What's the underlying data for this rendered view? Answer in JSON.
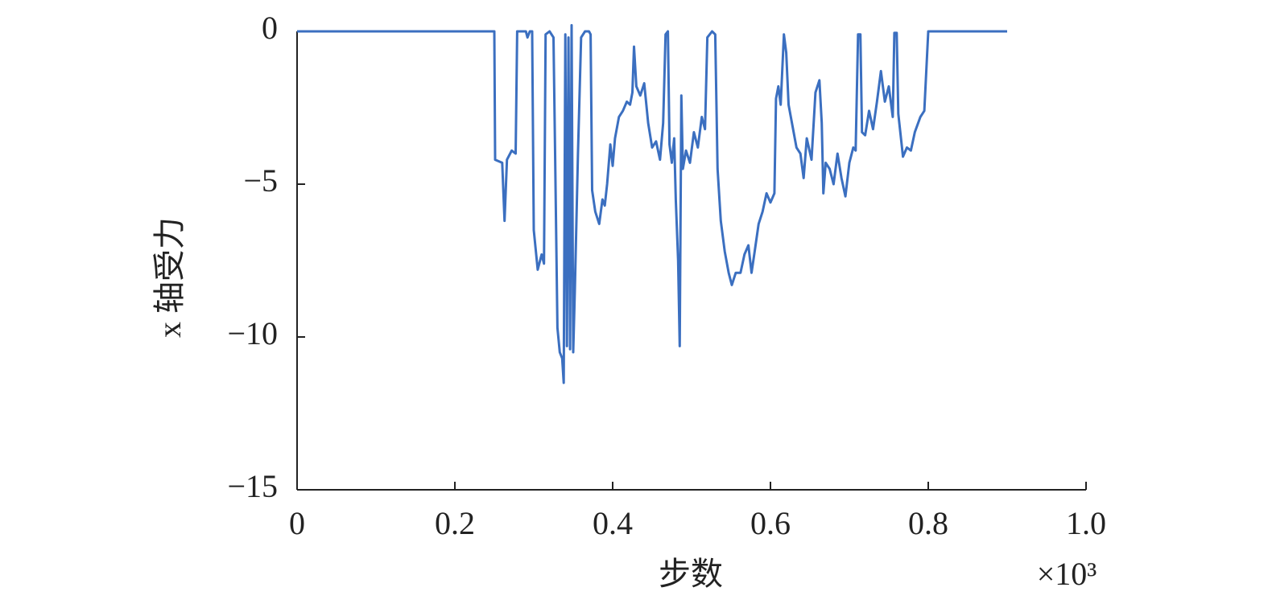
{
  "chart_data": {
    "type": "line",
    "x_label": "步数",
    "y_label": "x 轴受力",
    "x_multiplier": "×10³",
    "color": "#3b6fc0",
    "xlim": [
      0,
      1
    ],
    "xticks": [
      0,
      0.2,
      0.4,
      0.6,
      0.8,
      {
        "value": 1,
        "label": "1.0"
      }
    ],
    "ylim": [
      -15,
      0
    ],
    "yticks": [
      {
        "value": -15,
        "label": "−15"
      },
      {
        "value": -10,
        "label": "−10"
      },
      {
        "value": -5,
        "label": "−5"
      },
      0
    ],
    "grid": false,
    "x": [
      0,
      0.25,
      0.251,
      0.26,
      0.263,
      0.266,
      0.272,
      0.277,
      0.279,
      0.29,
      0.292,
      0.295,
      0.298,
      0.3,
      0.305,
      0.31,
      0.313,
      0.315,
      0.32,
      0.325,
      0.327,
      0.33,
      0.333,
      0.336,
      0.338,
      0.34,
      0.342,
      0.344,
      0.346,
      0.348,
      0.35,
      0.352,
      0.356,
      0.36,
      0.365,
      0.37,
      0.372,
      0.374,
      0.378,
      0.383,
      0.387,
      0.39,
      0.393,
      0.397,
      0.4,
      0.403,
      0.408,
      0.413,
      0.418,
      0.422,
      0.425,
      0.427,
      0.43,
      0.435,
      0.44,
      0.445,
      0.45,
      0.455,
      0.46,
      0.464,
      0.467,
      0.47,
      0.472,
      0.475,
      0.478,
      0.48,
      0.483,
      0.485,
      0.487,
      0.489,
      0.493,
      0.498,
      0.503,
      0.508,
      0.513,
      0.517,
      0.52,
      0.526,
      0.53,
      0.533,
      0.537,
      0.542,
      0.547,
      0.551,
      0.556,
      0.562,
      0.567,
      0.572,
      0.576,
      0.58,
      0.585,
      0.59,
      0.595,
      0.6,
      0.605,
      0.607,
      0.61,
      0.613,
      0.617,
      0.62,
      0.623,
      0.628,
      0.633,
      0.638,
      0.642,
      0.646,
      0.652,
      0.657,
      0.662,
      0.665,
      0.667,
      0.67,
      0.675,
      0.68,
      0.685,
      0.69,
      0.695,
      0.7,
      0.705,
      0.708,
      0.711,
      0.714,
      0.716,
      0.72,
      0.725,
      0.73,
      0.735,
      0.74,
      0.745,
      0.75,
      0.755,
      0.757,
      0.76,
      0.762,
      0.768,
      0.773,
      0.778,
      0.783,
      0.79,
      0.795,
      0.8,
      0.9
    ],
    "values": [
      0,
      0,
      -4.2,
      -4.3,
      -6.2,
      -4.2,
      -3.9,
      -4.0,
      0,
      0,
      -0.2,
      0,
      0,
      -6.5,
      -7.8,
      -7.3,
      -7.6,
      -0.1,
      0,
      -0.2,
      -4,
      -9.7,
      -10.5,
      -10.7,
      -11.5,
      -0.1,
      -10.3,
      -0.2,
      -10.4,
      0.2,
      -10.5,
      -8.5,
      -4,
      -0.2,
      0,
      0,
      -0.1,
      -5.2,
      -5.9,
      -6.3,
      -5.5,
      -5.7,
      -5.0,
      -3.7,
      -4.4,
      -3.5,
      -2.8,
      -2.6,
      -2.3,
      -2.4,
      -2.0,
      -0.5,
      -1.8,
      -2.1,
      -1.7,
      -3.0,
      -3.8,
      -3.6,
      -4.2,
      -3.0,
      -0.1,
      0,
      -3.7,
      -4.3,
      -3.5,
      -5.5,
      -7.5,
      -10.3,
      -2.1,
      -4.5,
      -3.9,
      -4.3,
      -3.3,
      -3.8,
      -2.8,
      -3.2,
      -0.2,
      0,
      -0.1,
      -4.5,
      -6.2,
      -7.2,
      -7.9,
      -8.3,
      -7.9,
      -7.9,
      -7.3,
      -7.0,
      -7.9,
      -7.2,
      -6.3,
      -5.9,
      -5.3,
      -5.6,
      -5.3,
      -2.2,
      -1.8,
      -2.4,
      -0.1,
      -0.7,
      -2.4,
      -3.1,
      -3.8,
      -4.0,
      -4.8,
      -3.5,
      -4.2,
      -2.0,
      -1.6,
      -3.0,
      -5.3,
      -4.3,
      -4.5,
      -5.0,
      -4.0,
      -4.8,
      -5.4,
      -4.3,
      -3.8,
      -3.9,
      -0.1,
      -0.1,
      -3.3,
      -3.4,
      -2.6,
      -3.2,
      -2.3,
      -1.3,
      -2.3,
      -1.8,
      -2.8,
      -0.05,
      -0.05,
      -2.7,
      -4.1,
      -3.8,
      -3.9,
      -3.3,
      -2.8,
      -2.6,
      0,
      0
    ]
  }
}
